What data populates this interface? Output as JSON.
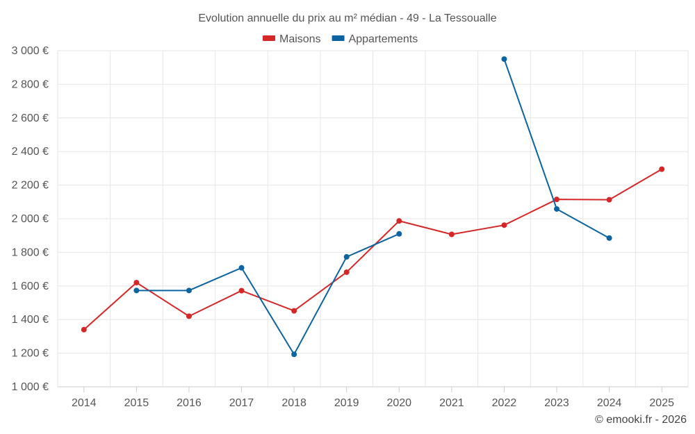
{
  "chart_data": {
    "type": "line",
    "title": "Evolution annuelle du prix au m² médian - 49 - La Tessoualle",
    "categories": [
      "2014",
      "2015",
      "2016",
      "2017",
      "2018",
      "2019",
      "2020",
      "2021",
      "2022",
      "2023",
      "2024",
      "2025"
    ],
    "ylim": [
      1000,
      3000
    ],
    "yticks": [
      1000,
      1200,
      1400,
      1600,
      1800,
      2000,
      2200,
      2400,
      2600,
      2800,
      3000
    ],
    "ytick_labels": [
      "1 000 €",
      "1 200 €",
      "1 400 €",
      "1 600 €",
      "1 800 €",
      "2 000 €",
      "2 200 €",
      "2 400 €",
      "2 600 €",
      "2 800 €",
      "3 000 €"
    ],
    "grid": true,
    "legend_position": "top-center",
    "series": [
      {
        "name": "Maisons",
        "color": "#d62728",
        "values": [
          1340,
          1620,
          1420,
          1572,
          1452,
          1682,
          1987,
          1907,
          1962,
          2115,
          2113,
          2295
        ]
      },
      {
        "name": "Appartements",
        "color": "#0b64a0",
        "values": [
          null,
          1573,
          1573,
          1708,
          1193,
          1773,
          1910,
          null,
          2950,
          2058,
          1885,
          null
        ]
      }
    ]
  },
  "footer": {
    "credit": "© emooki.fr - 2026"
  }
}
